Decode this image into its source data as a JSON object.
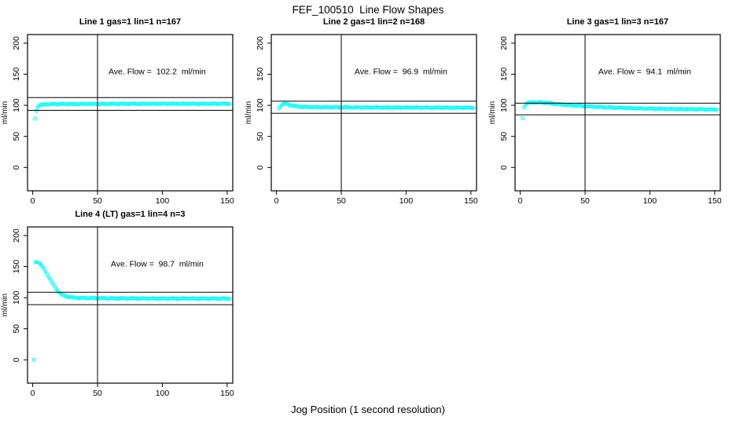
{
  "figure": {
    "title": "FEF_100510  Line Flow Shapes",
    "xlabel": "Jog Position (1 second resolution)",
    "point_color": "#00ffff",
    "axis_color": "#000000",
    "background": "#ffffff"
  },
  "chart_data": [
    {
      "type": "scatter",
      "title": "Line 1 gas=1 lin=1 n=167",
      "n": 167,
      "annotation": "Ave. Flow =  102.2  ml/min",
      "ave_flow_ml_min": 102.2,
      "ylabel": "ml/min",
      "xticks": [
        0,
        50,
        100,
        150
      ],
      "yticks": [
        0,
        50,
        100,
        150,
        200
      ],
      "xlim": [
        -4,
        154.3
      ],
      "ylim": [
        -37.5,
        213.8
      ],
      "vline_x": 50,
      "hlines": [
        112.4,
        92.0
      ],
      "annotation_xy": [
        96,
        150
      ],
      "lead_points": [
        [
          2,
          78.5
        ],
        [
          3,
          91
        ]
      ],
      "keypoints": [
        [
          4,
          97.5
        ],
        [
          5,
          99.8
        ],
        [
          6,
          100.6
        ],
        [
          8,
          101.2
        ],
        [
          12,
          101.7
        ],
        [
          20,
          102
        ],
        [
          40,
          102.2
        ],
        [
          80,
          102.4
        ],
        [
          152,
          102.5
        ]
      ],
      "x_start": 4,
      "x_end": 152
    },
    {
      "type": "scatter",
      "title": "Line 2 gas=1 lin=2 n=168",
      "n": 168,
      "annotation": "Ave. Flow =  96.9  ml/min",
      "ave_flow_ml_min": 96.9,
      "ylabel": "ml/min",
      "xticks": [
        0,
        50,
        100,
        150
      ],
      "yticks": [
        0,
        50,
        100,
        150,
        200
      ],
      "xlim": [
        -4,
        154.3
      ],
      "ylim": [
        -37.5,
        213.8
      ],
      "vline_x": 50,
      "hlines": [
        106.6,
        87.2
      ],
      "annotation_xy": [
        96,
        150
      ],
      "lead_points": [],
      "keypoints": [
        [
          2,
          95.5
        ],
        [
          3,
          97.5
        ],
        [
          4,
          100.5
        ],
        [
          5,
          102.3
        ],
        [
          6,
          102.7
        ],
        [
          7,
          102.5
        ],
        [
          8,
          102
        ],
        [
          10,
          100.7
        ],
        [
          12,
          99.5
        ],
        [
          15,
          98.4
        ],
        [
          20,
          97.5
        ],
        [
          30,
          97
        ],
        [
          50,
          96.7
        ],
        [
          90,
          96.4
        ],
        [
          152,
          96.1
        ]
      ],
      "x_start": 2,
      "x_end": 152
    },
    {
      "type": "scatter",
      "title": "Line 3 gas=1 lin=3 n=167",
      "n": 167,
      "annotation": "Ave. Flow =  94.1  ml/min",
      "ave_flow_ml_min": 94.1,
      "ylabel": "ml/min",
      "xticks": [
        0,
        50,
        100,
        150
      ],
      "yticks": [
        0,
        50,
        100,
        150,
        200
      ],
      "xlim": [
        -4,
        154.3
      ],
      "ylim": [
        -37.5,
        213.8
      ],
      "vline_x": 50,
      "hlines": [
        103.5,
        84.7
      ],
      "annotation_xy": [
        96,
        150
      ],
      "lead_points": [
        [
          2,
          79
        ]
      ],
      "keypoints": [
        [
          3,
          96.5
        ],
        [
          4,
          100.5
        ],
        [
          5,
          102.8
        ],
        [
          6,
          103.8
        ],
        [
          8,
          104.4
        ],
        [
          12,
          104.7
        ],
        [
          16,
          104.5
        ],
        [
          20,
          104
        ],
        [
          25,
          102.8
        ],
        [
          30,
          101.6
        ],
        [
          35,
          100.7
        ],
        [
          40,
          100
        ],
        [
          50,
          98.6
        ],
        [
          60,
          97.4
        ],
        [
          70,
          96.5
        ],
        [
          80,
          95.7
        ],
        [
          90,
          95.1
        ],
        [
          100,
          94.6
        ],
        [
          110,
          94.2
        ],
        [
          120,
          93.9
        ],
        [
          135,
          93.6
        ],
        [
          152,
          93.3
        ]
      ],
      "x_start": 3,
      "x_end": 152
    },
    {
      "type": "scatter",
      "title": "Line 4 (LT) gas=1 lin=4 n=3",
      "n": 3,
      "annotation": "Ave. Flow =  98.7  ml/min",
      "ave_flow_ml_min": 98.7,
      "ylabel": "ml/min",
      "xticks": [
        0,
        50,
        100,
        150
      ],
      "yticks": [
        0,
        50,
        100,
        150,
        200
      ],
      "xlim": [
        -4,
        154.3
      ],
      "ylim": [
        -37.5,
        213.8
      ],
      "vline_x": 50,
      "hlines": [
        108.6,
        88.8
      ],
      "annotation_xy": [
        96,
        150
      ],
      "lead_points": [
        [
          1,
          0
        ]
      ],
      "keypoints": [
        [
          2,
          157.5
        ],
        [
          3,
          157.5
        ],
        [
          4,
          157
        ],
        [
          5,
          156
        ],
        [
          6,
          154
        ],
        [
          7,
          151.5
        ],
        [
          8,
          148.5
        ],
        [
          9,
          145.5
        ],
        [
          10,
          142
        ],
        [
          11,
          138.5
        ],
        [
          12,
          135
        ],
        [
          13,
          131.5
        ],
        [
          14,
          128
        ],
        [
          15,
          124.5
        ],
        [
          16,
          121
        ],
        [
          17,
          117.8
        ],
        [
          18,
          114.8
        ],
        [
          19,
          112
        ],
        [
          20,
          109.5
        ],
        [
          21,
          107.5
        ],
        [
          22,
          105.8
        ],
        [
          24,
          103.5
        ],
        [
          26,
          102
        ],
        [
          28,
          101
        ],
        [
          31,
          100.2
        ],
        [
          35,
          99.7
        ],
        [
          40,
          99.4
        ],
        [
          50,
          99.1
        ],
        [
          70,
          98.8
        ],
        [
          100,
          98.6
        ],
        [
          152,
          98.5
        ]
      ],
      "x_start": 2,
      "x_end": 152
    }
  ]
}
